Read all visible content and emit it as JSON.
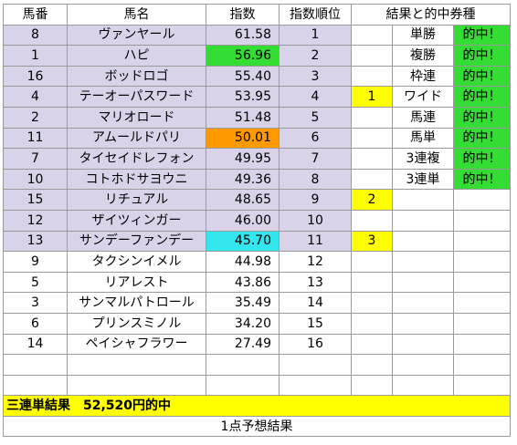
{
  "headers": [
    "馬番",
    "馬名",
    "指数",
    "指数順位",
    "結果と的中券種"
  ],
  "rows": [
    {
      "num": "8",
      "name": "ヴァンヤール",
      "index": "61.58",
      "rank": "1",
      "result": "",
      "ticket": "単勝",
      "hit": "的中！",
      "index_hl": "",
      "result_hl": false
    },
    {
      "num": "1",
      "name": "ハピ",
      "index": "56.96",
      "rank": "2",
      "result": "",
      "ticket": "複勝",
      "hit": "的中！",
      "index_hl": "green",
      "result_hl": false
    },
    {
      "num": "16",
      "name": "ボッドロゴ",
      "index": "55.40",
      "rank": "3",
      "result": "",
      "ticket": "枠連",
      "hit": "的中！",
      "index_hl": "",
      "result_hl": false
    },
    {
      "num": "4",
      "name": "テーオーパスワード",
      "index": "53.95",
      "rank": "4",
      "result": "1",
      "ticket": "ワイド",
      "hit": "的中！",
      "index_hl": "",
      "result_hl": true
    },
    {
      "num": "2",
      "name": "マリオロード",
      "index": "51.48",
      "rank": "5",
      "result": "",
      "ticket": "馬連",
      "hit": "的中！",
      "index_hl": "",
      "result_hl": false
    },
    {
      "num": "11",
      "name": "アムールドパリ",
      "index": "50.01",
      "rank": "6",
      "result": "",
      "ticket": "馬単",
      "hit": "的中！",
      "index_hl": "orange",
      "result_hl": false
    },
    {
      "num": "7",
      "name": "タイセイドレフォン",
      "index": "49.95",
      "rank": "7",
      "result": "",
      "ticket": "3連複",
      "hit": "的中！",
      "index_hl": "",
      "result_hl": false
    },
    {
      "num": "10",
      "name": "コトホドサヨウニ",
      "index": "49.36",
      "rank": "8",
      "result": "",
      "ticket": "3連単",
      "hit": "的中！",
      "index_hl": "",
      "result_hl": false
    },
    {
      "num": "15",
      "name": "リチュアル",
      "index": "48.65",
      "rank": "9",
      "result": "2",
      "ticket": "",
      "hit": "",
      "index_hl": "",
      "result_hl": true
    },
    {
      "num": "12",
      "name": "ザイツィンガー",
      "index": "46.00",
      "rank": "10",
      "result": "",
      "ticket": "",
      "hit": "",
      "index_hl": "",
      "result_hl": false
    },
    {
      "num": "13",
      "name": "サンデーファンデー",
      "index": "45.70",
      "rank": "11",
      "result": "3",
      "ticket": "",
      "hit": "",
      "index_hl": "cyan",
      "result_hl": true
    },
    {
      "num": "9",
      "name": "タクシンイメル",
      "index": "44.98",
      "rank": "12",
      "result": "",
      "ticket": "",
      "hit": "",
      "index_hl": "",
      "result_hl": false
    },
    {
      "num": "5",
      "name": "リアレスト",
      "index": "43.86",
      "rank": "13",
      "result": "",
      "ticket": "",
      "hit": "",
      "index_hl": "",
      "result_hl": false
    },
    {
      "num": "3",
      "name": "サンマルパトロール",
      "index": "35.49",
      "rank": "14",
      "result": "",
      "ticket": "",
      "hit": "",
      "index_hl": "",
      "result_hl": false
    },
    {
      "num": "6",
      "name": "プリンスミノル",
      "index": "34.20",
      "rank": "15",
      "result": "",
      "ticket": "",
      "hit": "",
      "index_hl": "",
      "result_hl": false
    },
    {
      "num": "14",
      "name": "ペイシャフラワー",
      "index": "27.49",
      "rank": "16",
      "result": "",
      "ticket": "",
      "hit": "",
      "index_hl": "",
      "result_hl": false
    },
    {
      "num": "",
      "name": "",
      "index": "",
      "rank": "",
      "result": "",
      "ticket": "",
      "hit": "",
      "index_hl": "",
      "result_hl": false
    },
    {
      "num": "",
      "name": "",
      "index": "",
      "rank": "",
      "result": "",
      "ticket": "",
      "hit": "",
      "index_hl": "",
      "result_hl": false
    }
  ],
  "lavender_rows": 11,
  "banner": "三連単結果　52,520円的中",
  "footer": "1点予想結果",
  "colors": {
    "lavender": "#d9d3e9",
    "green": "#33dd33",
    "orange": "#ff9900",
    "cyan": "#33e6ee",
    "yellow": "#ffff00"
  }
}
